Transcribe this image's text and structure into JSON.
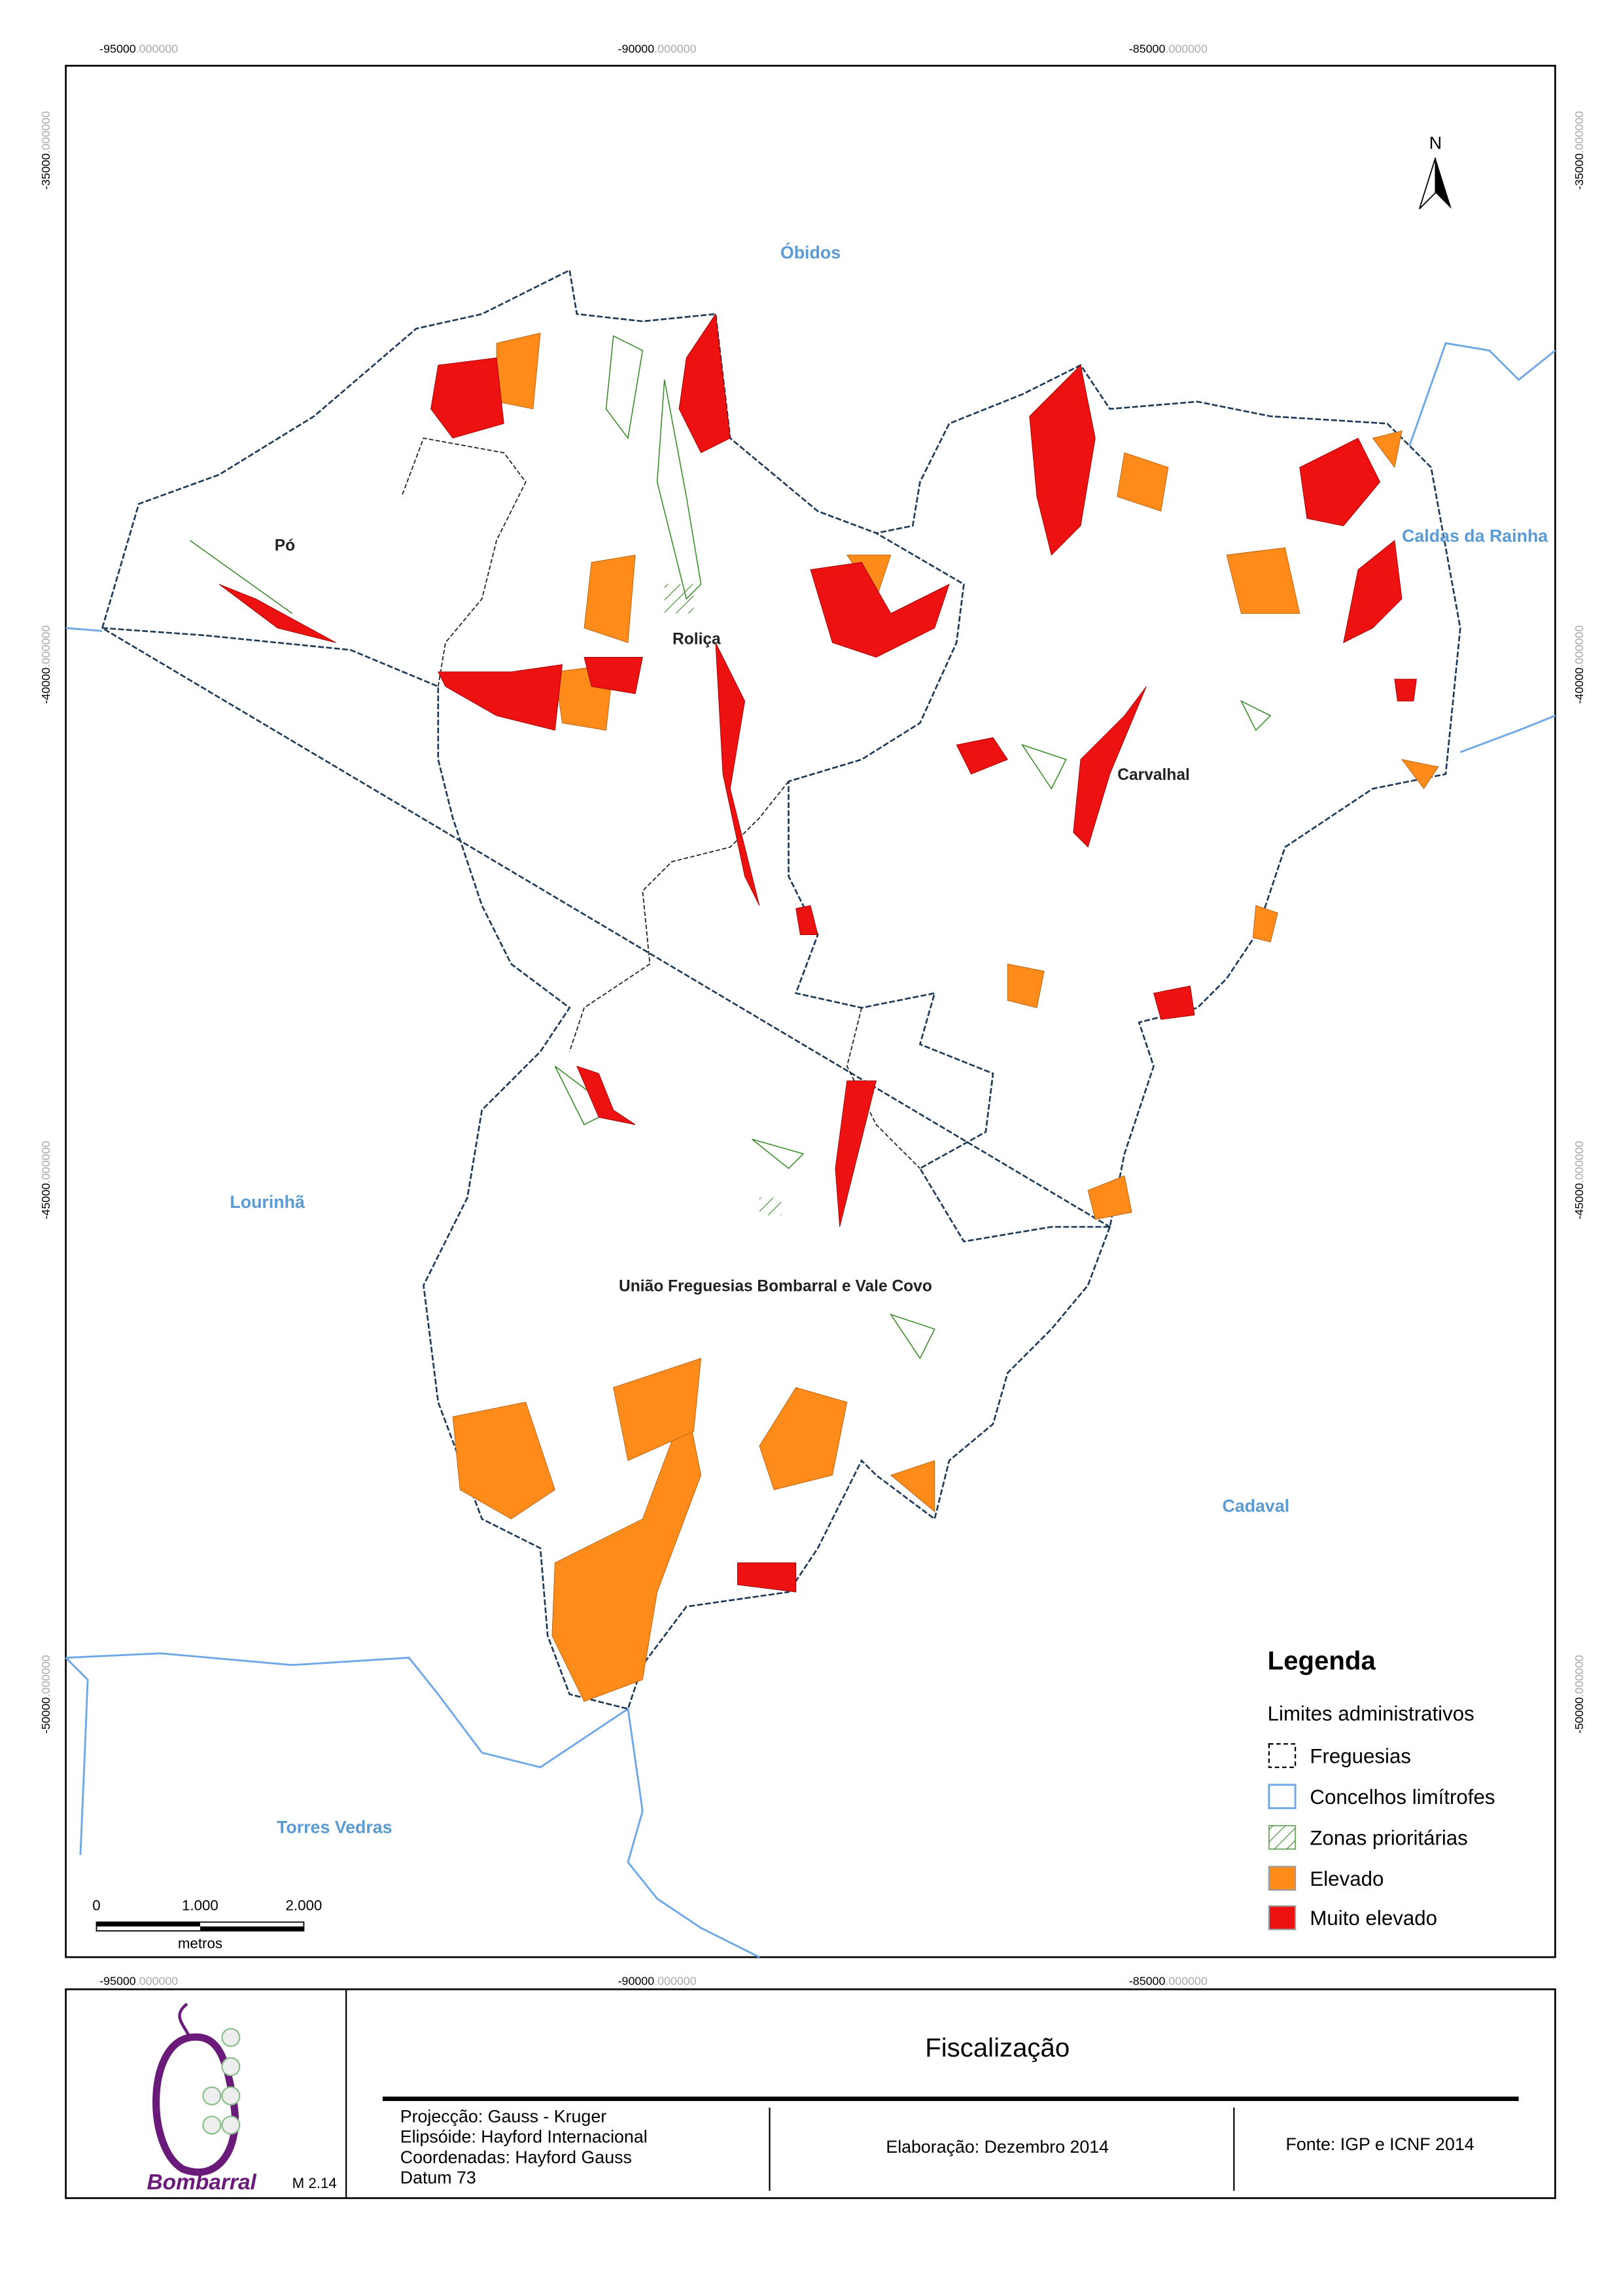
{
  "grid": {
    "x_labels": [
      {
        "main": "-95000",
        "fraction": ".000000"
      },
      {
        "main": "-90000",
        "fraction": ".000000"
      },
      {
        "main": "-85000",
        "fraction": ".000000"
      }
    ],
    "y_labels": [
      {
        "main": "-35000",
        "fraction": ".000000"
      },
      {
        "main": "-40000",
        "fraction": ".000000"
      },
      {
        "main": "-45000",
        "fraction": ".000000"
      },
      {
        "main": "-50000",
        "fraction": ".000000"
      }
    ]
  },
  "places": {
    "obidos": "Óbidos",
    "po": "Pó",
    "rolica": "Roliça",
    "carvalhal": "Carvalhal",
    "caldas": "Caldas da Rainha",
    "lourinha": "Lourinhã",
    "cadaval": "Cadaval",
    "torres_vedras": "Torres Vedras",
    "uniao": "União Freguesias Bombarral e Vale Covo"
  },
  "north": "N",
  "scale_bar": {
    "labels": [
      "0",
      "1.000",
      "2.000"
    ],
    "unit": "metros"
  },
  "legend": {
    "title": "Legenda",
    "subtitle": "Limites administrativos",
    "items": [
      "Freguesias",
      "Concelhos limítrofes",
      "Zonas prioritárias",
      "Elevado",
      "Muito elevado"
    ]
  },
  "footer": {
    "title": "Fiscalização",
    "projection": [
      "Projecção: Gauss - Kruger",
      "Elipsóide: Hayford Internacional",
      "Coordenadas: Hayford Gauss",
      "Datum 73"
    ],
    "elaboration": "Elaboração: Dezembro 2014",
    "source": "Fonte: IGP e ICNF 2014",
    "logo": "Bombarral",
    "map_code": "M 2.14"
  }
}
